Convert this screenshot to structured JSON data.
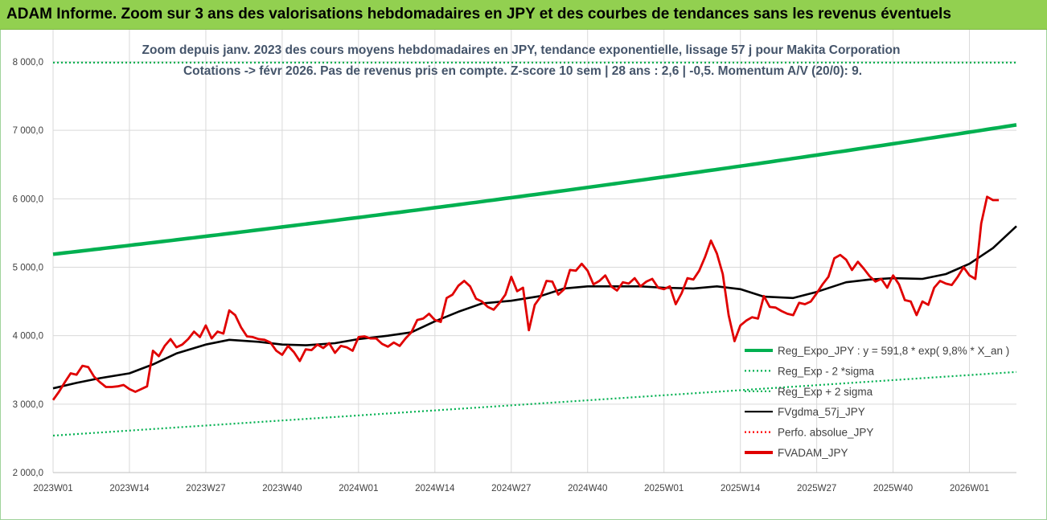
{
  "header": {
    "title": "ADAM Informe. Zoom sur 3 ans des valorisations hebdomadaires en JPY et des courbes de tendances sans les revenus éventuels"
  },
  "chart_data": {
    "type": "line",
    "title_line1": "Zoom depuis janv. 2023 des cours moyens hebdomadaires en JPY, tendance exponentielle, lissage 57 j pour Makita Corporation",
    "title_line2": "Cotations -> févr 2026. Pas de revenus pris en compte. Z-score 10 sem | 28 ans : 2,6 | -0,5. Momentum A/V (20/0): 9.",
    "ylim": [
      2000,
      8000
    ],
    "yticks": [
      2000,
      3000,
      4000,
      5000,
      6000,
      7000,
      8000
    ],
    "ytick_labels": [
      "2 000,0",
      "3 000,0",
      "4 000,0",
      "5 000,0",
      "6 000,0",
      "7 000,0",
      "8 000,0"
    ],
    "x_ticks": [
      {
        "label": "2023W01",
        "index": 0
      },
      {
        "label": "2023W14",
        "index": 13
      },
      {
        "label": "2023W27",
        "index": 26
      },
      {
        "label": "2023W40",
        "index": 39
      },
      {
        "label": "2024W01",
        "index": 52
      },
      {
        "label": "2024W14",
        "index": 65
      },
      {
        "label": "2024W27",
        "index": 78
      },
      {
        "label": "2024W40",
        "index": 91
      },
      {
        "label": "2025W01",
        "index": 104
      },
      {
        "label": "2025W14",
        "index": 117
      },
      {
        "label": "2025W27",
        "index": 130
      },
      {
        "label": "2025W40",
        "index": 143
      },
      {
        "label": "2026W01",
        "index": 156
      }
    ],
    "x_count": 165,
    "legend": [
      {
        "name": "Reg_Expo_JPY : y = 591,8 * exp( 9,8% *  X_an )",
        "color": "#00b050",
        "style": "solid-thick"
      },
      {
        "name": "Reg_Exp - 2 *sigma",
        "color": "#00b050",
        "style": "dotted"
      },
      {
        "name": "Reg_Exp + 2 sigma",
        "color": "#00b050",
        "style": "dotted"
      },
      {
        "name": "FVgdma_57j_JPY",
        "color": "#000000",
        "style": "solid"
      },
      {
        "name": "Perfo. absolue_JPY",
        "color": "#ff0000",
        "style": "dotted"
      },
      {
        "name": "FVADAM_JPY",
        "color": "#e00000",
        "style": "solid-thick"
      }
    ],
    "series": [
      {
        "name": "Reg_Expo_JPY",
        "start": 5190,
        "end": 7080
      },
      {
        "name": "Reg_Exp - 2 *sigma",
        "start": 2540,
        "end": 3470
      },
      {
        "name": "Reg_Exp + 2 sigma",
        "start": 7990,
        "end": 7990
      },
      {
        "name": "FVgdma_57j_JPY",
        "points": [
          [
            0,
            3230
          ],
          [
            4,
            3310
          ],
          [
            8,
            3380
          ],
          [
            13,
            3450
          ],
          [
            17,
            3580
          ],
          [
            21,
            3740
          ],
          [
            26,
            3870
          ],
          [
            30,
            3940
          ],
          [
            35,
            3910
          ],
          [
            39,
            3870
          ],
          [
            43,
            3860
          ],
          [
            48,
            3890
          ],
          [
            52,
            3950
          ],
          [
            57,
            4000
          ],
          [
            61,
            4050
          ],
          [
            65,
            4210
          ],
          [
            69,
            4350
          ],
          [
            73,
            4470
          ],
          [
            78,
            4510
          ],
          [
            83,
            4580
          ],
          [
            87,
            4690
          ],
          [
            91,
            4720
          ],
          [
            96,
            4720
          ],
          [
            100,
            4720
          ],
          [
            104,
            4700
          ],
          [
            109,
            4690
          ],
          [
            113,
            4720
          ],
          [
            117,
            4680
          ],
          [
            121,
            4570
          ],
          [
            126,
            4550
          ],
          [
            130,
            4640
          ],
          [
            135,
            4780
          ],
          [
            139,
            4820
          ],
          [
            143,
            4840
          ],
          [
            148,
            4830
          ],
          [
            152,
            4900
          ],
          [
            156,
            5050
          ],
          [
            160,
            5280
          ],
          [
            164,
            5600
          ]
        ]
      },
      {
        "name": "FVADAM_JPY",
        "points": [
          [
            0,
            3060
          ],
          [
            1,
            3180
          ],
          [
            2,
            3320
          ],
          [
            3,
            3450
          ],
          [
            4,
            3430
          ],
          [
            5,
            3560
          ],
          [
            6,
            3540
          ],
          [
            7,
            3400
          ],
          [
            8,
            3320
          ],
          [
            9,
            3250
          ],
          [
            10,
            3250
          ],
          [
            11,
            3260
          ],
          [
            12,
            3280
          ],
          [
            13,
            3220
          ],
          [
            14,
            3180
          ],
          [
            15,
            3220
          ],
          [
            16,
            3260
          ],
          [
            17,
            3780
          ],
          [
            18,
            3700
          ],
          [
            19,
            3850
          ],
          [
            20,
            3950
          ],
          [
            21,
            3830
          ],
          [
            22,
            3870
          ],
          [
            23,
            3950
          ],
          [
            24,
            4060
          ],
          [
            25,
            3980
          ],
          [
            26,
            4150
          ],
          [
            27,
            3960
          ],
          [
            28,
            4060
          ],
          [
            29,
            4030
          ],
          [
            30,
            4370
          ],
          [
            31,
            4300
          ],
          [
            32,
            4120
          ],
          [
            33,
            3990
          ],
          [
            34,
            3980
          ],
          [
            35,
            3950
          ],
          [
            36,
            3940
          ],
          [
            37,
            3900
          ],
          [
            38,
            3780
          ],
          [
            39,
            3720
          ],
          [
            40,
            3850
          ],
          [
            41,
            3760
          ],
          [
            42,
            3630
          ],
          [
            43,
            3800
          ],
          [
            44,
            3790
          ],
          [
            45,
            3870
          ],
          [
            46,
            3820
          ],
          [
            47,
            3890
          ],
          [
            48,
            3750
          ],
          [
            49,
            3850
          ],
          [
            50,
            3830
          ],
          [
            51,
            3780
          ],
          [
            52,
            3980
          ],
          [
            53,
            3990
          ],
          [
            54,
            3960
          ],
          [
            55,
            3960
          ],
          [
            56,
            3880
          ],
          [
            57,
            3840
          ],
          [
            58,
            3900
          ],
          [
            59,
            3850
          ],
          [
            60,
            3960
          ],
          [
            61,
            4050
          ],
          [
            62,
            4230
          ],
          [
            63,
            4250
          ],
          [
            64,
            4320
          ],
          [
            65,
            4230
          ],
          [
            66,
            4200
          ],
          [
            67,
            4550
          ],
          [
            68,
            4600
          ],
          [
            69,
            4730
          ],
          [
            70,
            4800
          ],
          [
            71,
            4720
          ],
          [
            72,
            4540
          ],
          [
            73,
            4500
          ],
          [
            74,
            4420
          ],
          [
            75,
            4380
          ],
          [
            76,
            4480
          ],
          [
            77,
            4600
          ],
          [
            78,
            4860
          ],
          [
            79,
            4650
          ],
          [
            80,
            4700
          ],
          [
            81,
            4080
          ],
          [
            82,
            4450
          ],
          [
            83,
            4570
          ],
          [
            84,
            4800
          ],
          [
            85,
            4790
          ],
          [
            86,
            4600
          ],
          [
            87,
            4680
          ],
          [
            88,
            4960
          ],
          [
            89,
            4950
          ],
          [
            90,
            5050
          ],
          [
            91,
            4950
          ],
          [
            92,
            4750
          ],
          [
            93,
            4800
          ],
          [
            94,
            4880
          ],
          [
            95,
            4720
          ],
          [
            96,
            4660
          ],
          [
            97,
            4780
          ],
          [
            98,
            4760
          ],
          [
            99,
            4840
          ],
          [
            100,
            4720
          ],
          [
            101,
            4790
          ],
          [
            102,
            4830
          ],
          [
            103,
            4700
          ],
          [
            104,
            4680
          ],
          [
            105,
            4720
          ],
          [
            106,
            4460
          ],
          [
            107,
            4620
          ],
          [
            108,
            4840
          ],
          [
            109,
            4820
          ],
          [
            110,
            4950
          ],
          [
            111,
            5150
          ],
          [
            112,
            5390
          ],
          [
            113,
            5200
          ],
          [
            114,
            4900
          ],
          [
            115,
            4300
          ],
          [
            116,
            3920
          ],
          [
            117,
            4150
          ],
          [
            118,
            4220
          ],
          [
            119,
            4270
          ],
          [
            120,
            4250
          ],
          [
            121,
            4580
          ],
          [
            122,
            4420
          ],
          [
            123,
            4410
          ],
          [
            124,
            4360
          ],
          [
            125,
            4320
          ],
          [
            126,
            4300
          ],
          [
            127,
            4480
          ],
          [
            128,
            4460
          ],
          [
            129,
            4500
          ],
          [
            130,
            4620
          ],
          [
            131,
            4750
          ],
          [
            132,
            4860
          ],
          [
            133,
            5130
          ],
          [
            134,
            5180
          ],
          [
            135,
            5110
          ],
          [
            136,
            4960
          ],
          [
            137,
            5080
          ],
          [
            138,
            4980
          ],
          [
            139,
            4870
          ],
          [
            140,
            4790
          ],
          [
            141,
            4830
          ],
          [
            142,
            4700
          ],
          [
            143,
            4880
          ],
          [
            144,
            4750
          ],
          [
            145,
            4520
          ],
          [
            146,
            4500
          ],
          [
            147,
            4300
          ],
          [
            148,
            4500
          ],
          [
            149,
            4450
          ],
          [
            150,
            4700
          ],
          [
            151,
            4800
          ],
          [
            152,
            4760
          ],
          [
            153,
            4740
          ],
          [
            154,
            4860
          ],
          [
            155,
            5000
          ],
          [
            156,
            4880
          ],
          [
            157,
            4830
          ],
          [
            158,
            5640
          ],
          [
            159,
            6030
          ],
          [
            160,
            5980
          ],
          [
            161,
            5980
          ]
        ]
      }
    ]
  }
}
